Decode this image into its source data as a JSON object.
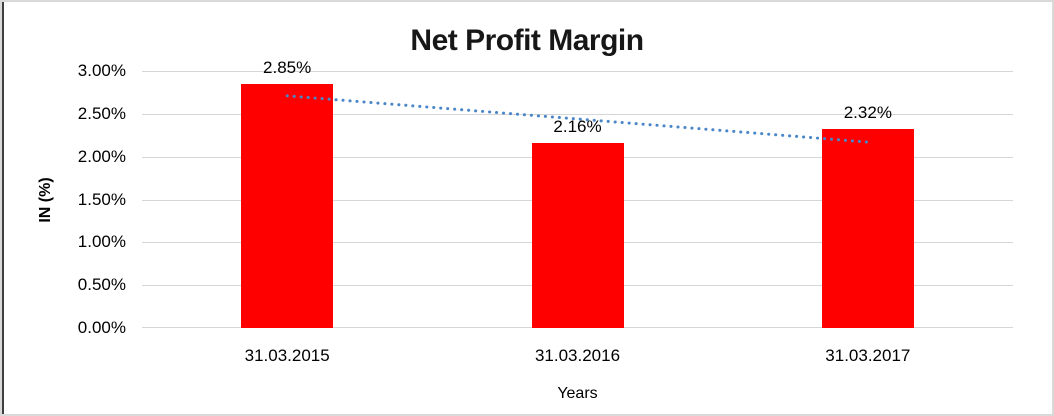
{
  "chart_data": {
    "type": "bar",
    "title": "Net Profit Margin",
    "xlabel": "Years",
    "ylabel": "IN (%)",
    "categories": [
      "31.03.2015",
      "31.03.2016",
      "31.03.2017"
    ],
    "values": [
      2.85,
      2.16,
      2.32
    ],
    "value_labels": [
      "2.85%",
      "2.16%",
      "2.32%"
    ],
    "ylim": [
      0,
      3
    ],
    "yticks": {
      "values": [
        0,
        0.5,
        1.0,
        1.5,
        2.0,
        2.5,
        3.0
      ],
      "labels": [
        "0.00%",
        "0.50%",
        "1.00%",
        "1.50%",
        "2.00%",
        "2.50%",
        "3.00%"
      ]
    },
    "grid": "horizontal",
    "legend": "none",
    "colors": {
      "bar": "#ff0000",
      "gridline": "#d6d6d6",
      "trendline": "#4a86c8",
      "text": "#000000",
      "border": "#d9d9d9"
    },
    "trendline": {
      "type": "linear",
      "style": "dotted",
      "color": "#4a86c8",
      "start_value": 2.71,
      "end_value": 2.17
    }
  }
}
